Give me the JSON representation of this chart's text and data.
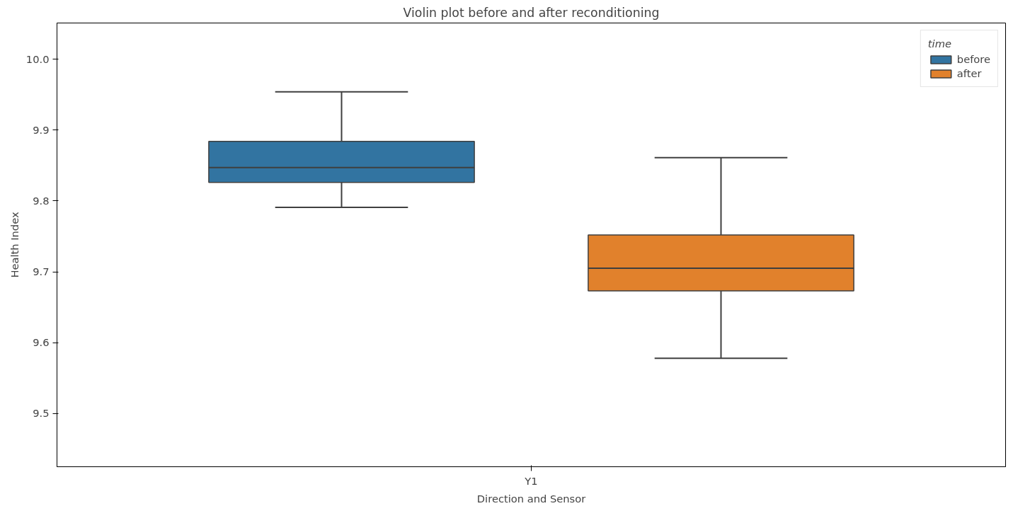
{
  "chart_data": {
    "type": "box",
    "title": "Violin plot before and after reconditioning",
    "xlabel": "Direction and Sensor",
    "ylabel": "Health Index",
    "legend_title": "time",
    "legend": "top right",
    "grid": false,
    "categories": [
      "Y1"
    ],
    "ylim": [
      9.425,
      10.051
    ],
    "yticks": [
      {
        "value": 9.5,
        "label": "9.5"
      },
      {
        "value": 9.6,
        "label": "9.6"
      },
      {
        "value": 9.7,
        "label": "9.7"
      },
      {
        "value": 9.8,
        "label": "9.8"
      },
      {
        "value": 9.9,
        "label": "9.9"
      },
      {
        "value": 10.0,
        "label": "10.0"
      }
    ],
    "series": [
      {
        "name": "before",
        "color": "#3274a1",
        "boxes": [
          {
            "low": 9.791,
            "q1": 9.826,
            "median": 9.847,
            "q3": 9.884,
            "high": 9.954
          }
        ]
      },
      {
        "name": "after",
        "color": "#e1812c",
        "boxes": [
          {
            "low": 9.578,
            "q1": 9.673,
            "median": 9.705,
            "q3": 9.752,
            "high": 9.861
          }
        ]
      }
    ]
  }
}
